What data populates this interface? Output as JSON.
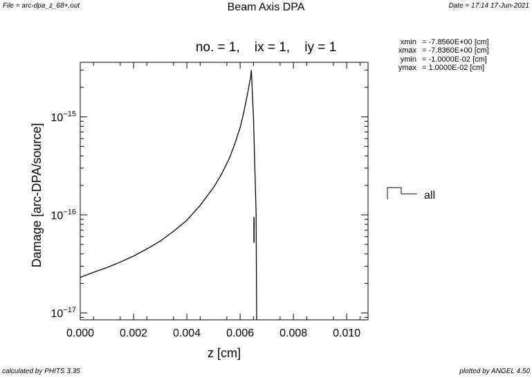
{
  "header": {
    "file": "File = arc-dpa_z_68+.out",
    "date": "Date = 17:14 17-Jun-2021",
    "title": "Beam Axis DPA"
  },
  "subtitle": {
    "no": "no. =  1,",
    "ix": "ix =  1,",
    "iy": "iy =  1"
  },
  "info": [
    {
      "key": "xmin",
      "value": "=  -7.8560E+00 [cm]"
    },
    {
      "key": "xmax",
      "value": "=  -7.8360E+00 [cm]"
    },
    {
      "key": "ymin",
      "value": "=  -1.0000E-02 [cm]"
    },
    {
      "key": "ymax",
      "value": "=   1.0000E-02 [cm]"
    }
  ],
  "footer": {
    "left": "calculated by PHITS 3.35",
    "right": "plotted by ANGEL 4.50"
  },
  "chart_data": {
    "type": "line",
    "title": "",
    "xlabel": "z [cm]",
    "ylabel": "Damage [arc-DPA/source]",
    "xlim": [
      0.0,
      0.0108
    ],
    "ylim": [
      8.5e-18,
      3.6e-15
    ],
    "yscale": "log",
    "x_ticks": [
      "0.000",
      "0.002",
      "0.004",
      "0.006",
      "0.008",
      "0.010"
    ],
    "x_tick_values": [
      0.0,
      0.002,
      0.004,
      0.006,
      0.008,
      0.01
    ],
    "y_ticks": [
      {
        "base": "10",
        "exp": "−15",
        "value": 1e-15
      },
      {
        "base": "10",
        "exp": "−16",
        "value": 1e-16
      },
      {
        "base": "10",
        "exp": "−17",
        "value": 1e-17
      }
    ],
    "legend_position": "right",
    "grid": false,
    "series": [
      {
        "name": "all",
        "x": [
          0.0,
          0.0005,
          0.001,
          0.0015,
          0.002,
          0.0025,
          0.003,
          0.0035,
          0.004,
          0.0045,
          0.005,
          0.0053,
          0.0056,
          0.0058,
          0.006,
          0.0061,
          0.0062,
          0.0063,
          0.00635,
          0.0064,
          0.00642,
          0.0065,
          0.0066,
          0.00662
        ],
        "y": [
          2.3e-17,
          2.6e-17,
          2.9e-17,
          3.3e-17,
          3.8e-17,
          4.5e-17,
          5.4e-17,
          6.8e-17,
          8.8e-17,
          1.25e-16,
          1.9e-16,
          2.6e-16,
          3.8e-16,
          5.3e-16,
          7.8e-16,
          1e-15,
          1.35e-15,
          1.85e-15,
          2.2e-15,
          2.6e-15,
          3e-15,
          1e-15,
          1e-16,
          8.5e-18
        ]
      }
    ]
  }
}
